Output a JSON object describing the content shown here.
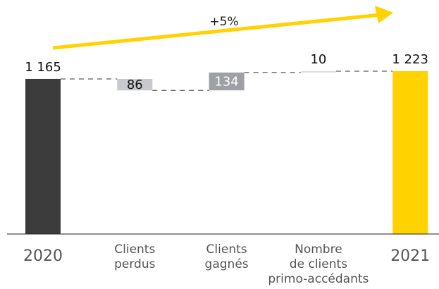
{
  "chart_data": {
    "type": "waterfall",
    "annotation": "+5%",
    "categories": [
      [
        "2020"
      ],
      [
        "Clients",
        "perdus"
      ],
      [
        "Clients",
        "gagnés"
      ],
      [
        "Nombre",
        "de clients",
        "primo-accédants"
      ],
      [
        "2021"
      ]
    ],
    "values": [
      1165,
      -86,
      134,
      10,
      1223
    ],
    "value_labels": [
      "1 165",
      "86",
      "134",
      "10",
      "1 223"
    ],
    "measures": [
      "absolute",
      "relative",
      "relative",
      "relative",
      "total"
    ],
    "colors": [
      "#3c3c3c",
      "#c8c9cc",
      "#9fa0a5",
      "#dcdcdc",
      "#ffd200"
    ],
    "arrow_color": "#ffd200"
  }
}
